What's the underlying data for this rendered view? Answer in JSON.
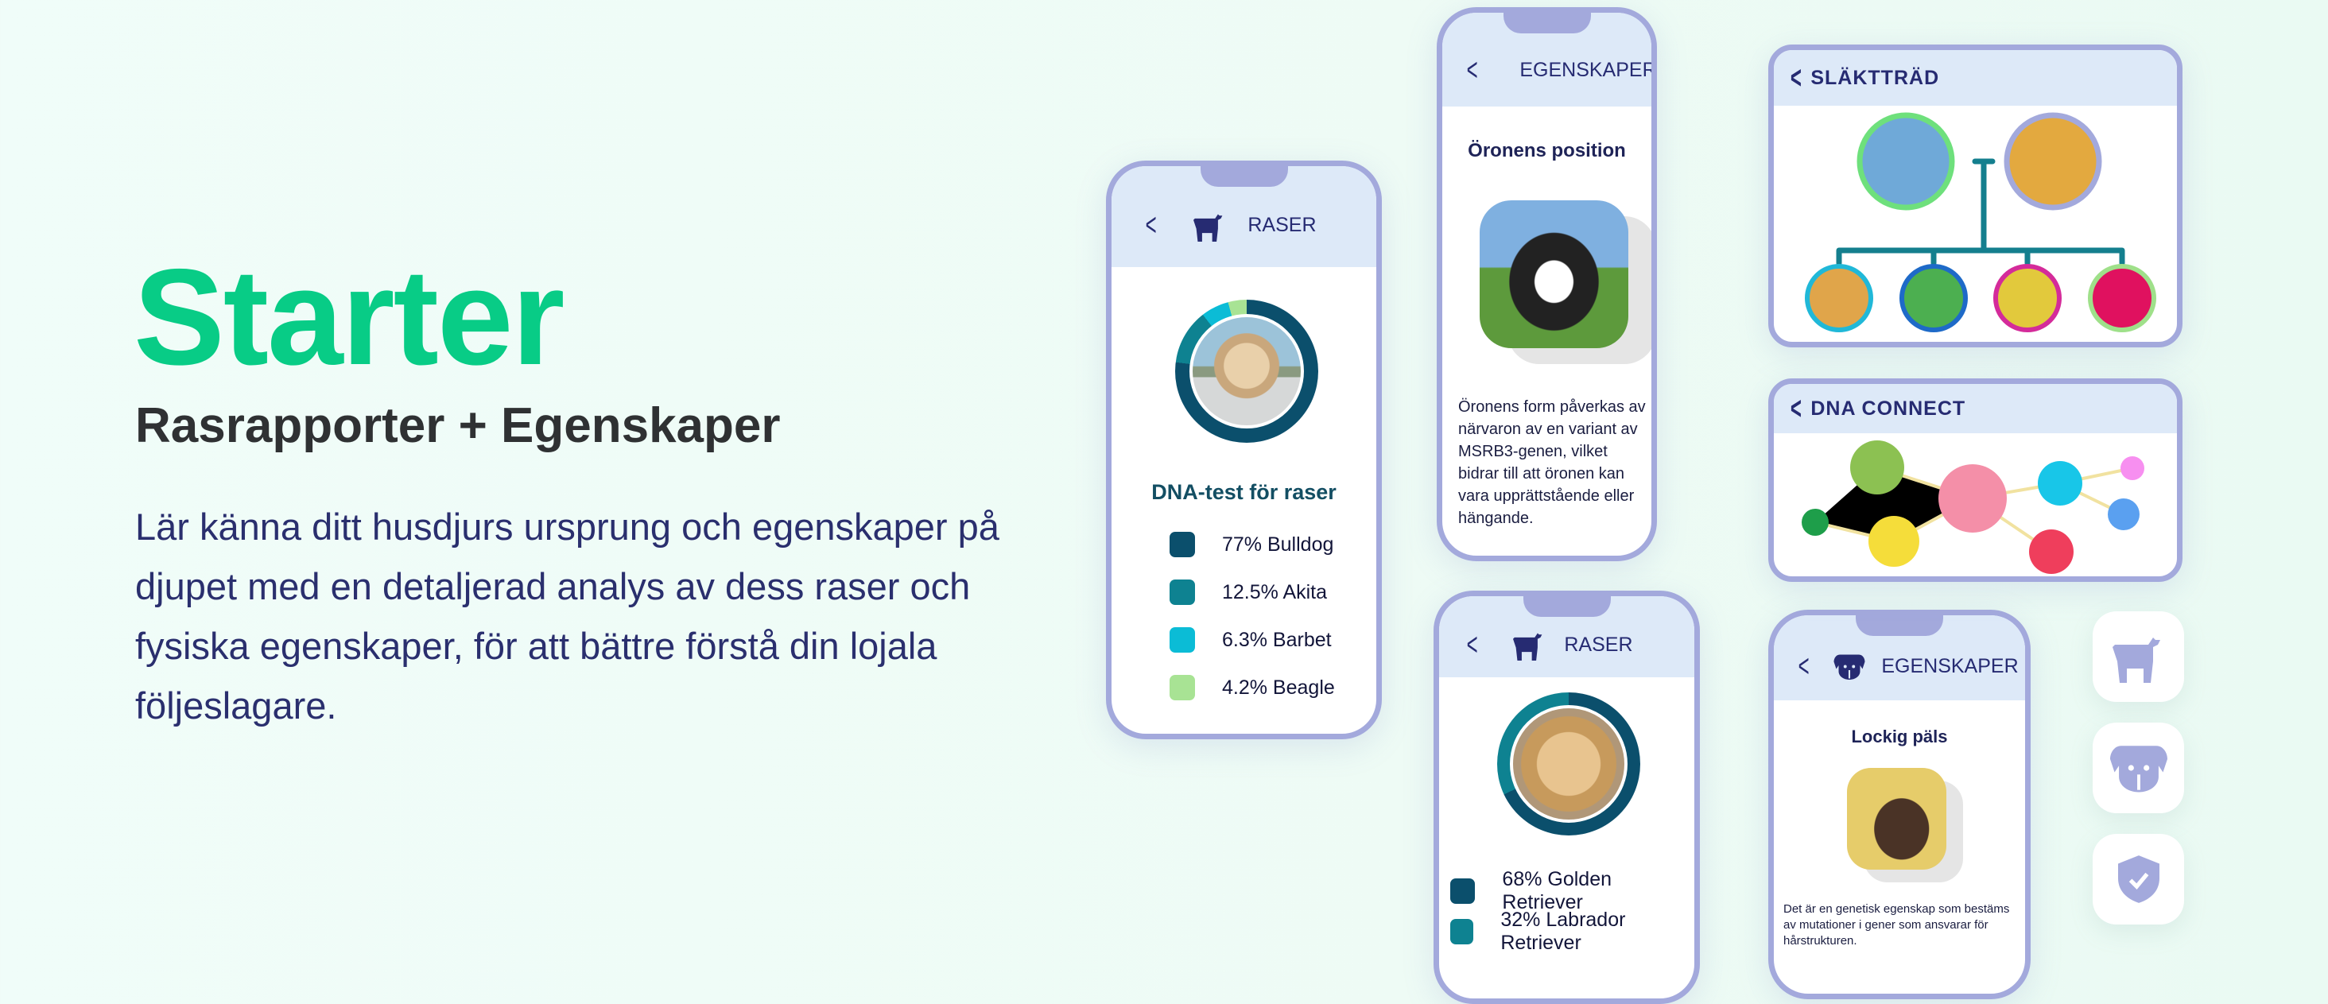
{
  "hero": {
    "title": "Starter",
    "subtitle": "Rasrapporter + Egenskaper",
    "description": "Lär känna ditt husdjurs ursprung och egenskaper på djupet med en detaljerad analys av dess raser och fysiska egenskaper, för att bättre förstå din lojala följeslagare.",
    "accent": "#08cc86"
  },
  "raser1": {
    "header": "RASER",
    "title": "DNA-test för raser",
    "breeds": [
      {
        "label": "77% Bulldog",
        "pct": 77,
        "color": "#0b4f6c"
      },
      {
        "label": "12.5% Akita",
        "pct": 12.5,
        "color": "#0e8291"
      },
      {
        "label": "6.3% Barbet",
        "pct": 6.3,
        "color": "#0bbcd6"
      },
      {
        "label": "4.2% Beagle",
        "pct": 4.2,
        "color": "#a8e394"
      }
    ]
  },
  "egen1": {
    "header": "EGENSKAPER",
    "title": "Öronens position",
    "text": "Öronens form påverkas av närvaron av en variant av MSRB3-genen, vilket bidrar till att öronen kan vara upprättstående eller hängande."
  },
  "raser2": {
    "header": "RASER",
    "breeds": [
      {
        "label": "68% Golden Retriever",
        "pct": 68,
        "color": "#0b4f6c"
      },
      {
        "label": "32% Labrador Retriever",
        "pct": 32,
        "color": "#0e8291"
      }
    ]
  },
  "egen2": {
    "header": "EGENSKAPER",
    "title": "Lockig päls",
    "text": "Det är en genetisk egenskap som bestäms av mutationer i gener som ansvarar för hårstrukturen."
  },
  "tree": {
    "header": "SLÄKTTRÄD"
  },
  "connect": {
    "header": "DNA CONNECT"
  },
  "tiles": [
    "dog-icon",
    "dog-face-icon",
    "shield-check-icon"
  ]
}
